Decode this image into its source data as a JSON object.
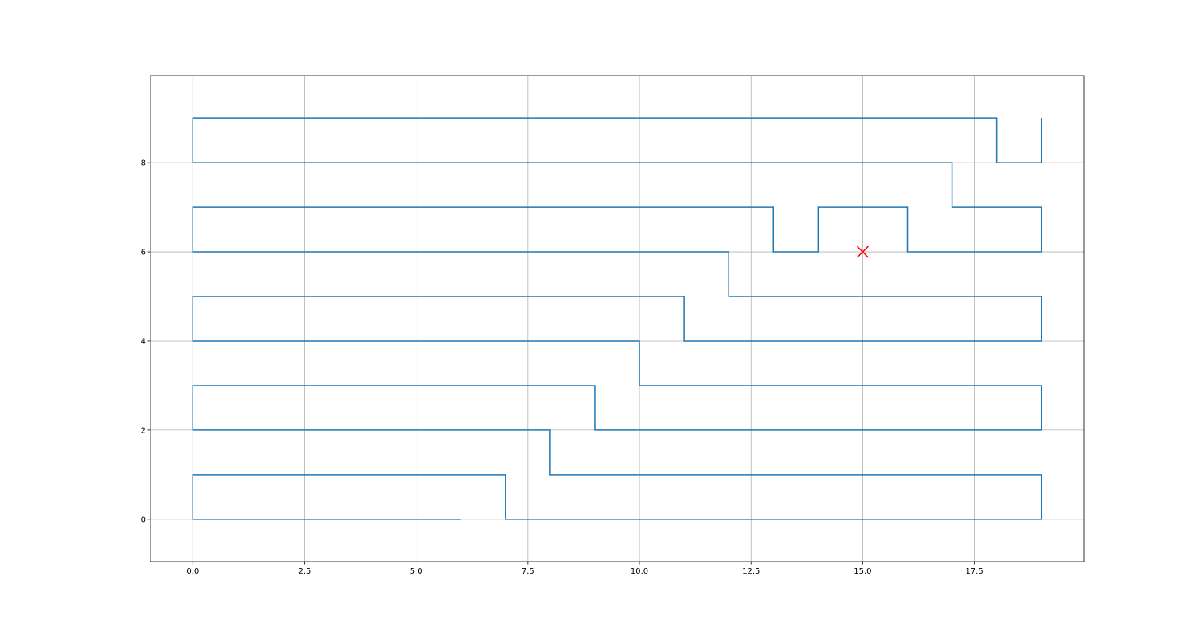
{
  "chart_data": {
    "type": "line",
    "title": "",
    "xlabel": "",
    "ylabel": "",
    "xlim": [
      -0.95,
      19.95
    ],
    "ylim": [
      -0.95,
      9.95
    ],
    "grid": true,
    "x_ticks": [
      {
        "value": 0.0,
        "label": "0.0"
      },
      {
        "value": 2.5,
        "label": "2.5"
      },
      {
        "value": 5.0,
        "label": "5.0"
      },
      {
        "value": 7.5,
        "label": "7.5"
      },
      {
        "value": 10.0,
        "label": "10.0"
      },
      {
        "value": 12.5,
        "label": "12.5"
      },
      {
        "value": 15.0,
        "label": "15.0"
      },
      {
        "value": 17.5,
        "label": "17.5"
      }
    ],
    "y_ticks": [
      {
        "value": 0,
        "label": "0"
      },
      {
        "value": 2,
        "label": "2"
      },
      {
        "value": 4,
        "label": "4"
      },
      {
        "value": 6,
        "label": "6"
      },
      {
        "value": 8,
        "label": "8"
      }
    ],
    "series": [
      {
        "color": "#1f77b4",
        "x": [
          6,
          0,
          0,
          7,
          7,
          19,
          19,
          8,
          8,
          0,
          0,
          9,
          9,
          19,
          19,
          10,
          10,
          0,
          0,
          11,
          11,
          19,
          19,
          12,
          12,
          0,
          0,
          13,
          13,
          14,
          14,
          16,
          16,
          19,
          19,
          17,
          17,
          0,
          0,
          18,
          18,
          19,
          19
        ],
        "y": [
          0,
          0,
          1,
          1,
          0,
          0,
          1,
          1,
          2,
          2,
          3,
          3,
          2,
          2,
          3,
          3,
          4,
          4,
          5,
          5,
          4,
          4,
          5,
          5,
          6,
          6,
          7,
          7,
          6,
          6,
          7,
          7,
          6,
          6,
          7,
          7,
          8,
          8,
          9,
          9,
          8,
          8,
          9
        ]
      }
    ],
    "markers": [
      {
        "x": 15,
        "y": 6,
        "symbol": "x",
        "color": "#ff0000"
      }
    ]
  }
}
